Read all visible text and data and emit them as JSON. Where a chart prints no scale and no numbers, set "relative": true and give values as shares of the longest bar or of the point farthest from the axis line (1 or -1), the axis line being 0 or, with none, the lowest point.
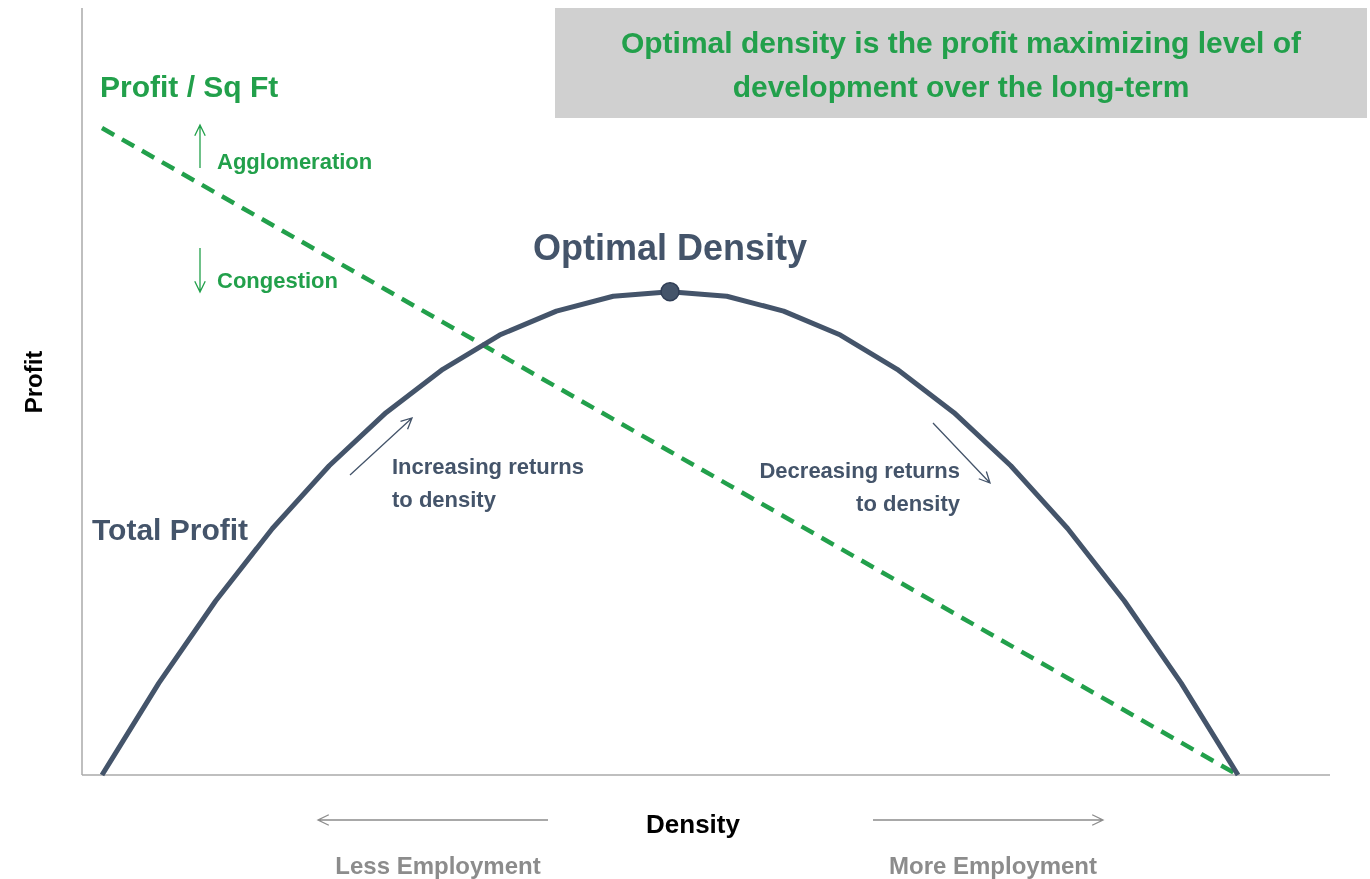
{
  "chart_data": {
    "type": "line",
    "title": "Optimal density is the profit maximizing level of development over the long-term",
    "xlabel": "Density",
    "ylabel": "Profit",
    "relative": true,
    "categories": [
      null,
      null,
      null,
      null,
      null,
      null,
      null,
      null,
      null,
      null,
      null,
      null,
      null,
      null,
      null,
      null,
      null,
      null,
      null,
      null,
      null
    ],
    "series": [
      {
        "name": "Profit / Sq Ft",
        "color": "#22a04b",
        "line_style": "dashed",
        "values": [
          1,
          0.95,
          0.9,
          0.85,
          0.8,
          0.75,
          0.7,
          0.65,
          0.6,
          0.55,
          0.5,
          0.45,
          0.4,
          0.35,
          0.3,
          0.25,
          0.2,
          0.15,
          0.1,
          0.05,
          0
        ]
      },
      {
        "name": "Total Profit",
        "color": "#44546a",
        "line_style": "solid",
        "values": [
          0,
          0.142,
          0.269,
          0.381,
          0.478,
          0.56,
          0.627,
          0.68,
          0.717,
          0.74,
          0.747,
          0.74,
          0.717,
          0.68,
          0.627,
          0.56,
          0.478,
          0.381,
          0.269,
          0.142,
          0
        ]
      }
    ],
    "annotations": [
      "Agglomeration",
      "Congestion",
      "Increasing returns to density",
      "Decreasing returns to density",
      "Less Employment",
      "More Employment",
      {
        "text": "Optimal Density",
        "y": 0.747
      }
    ]
  }
}
